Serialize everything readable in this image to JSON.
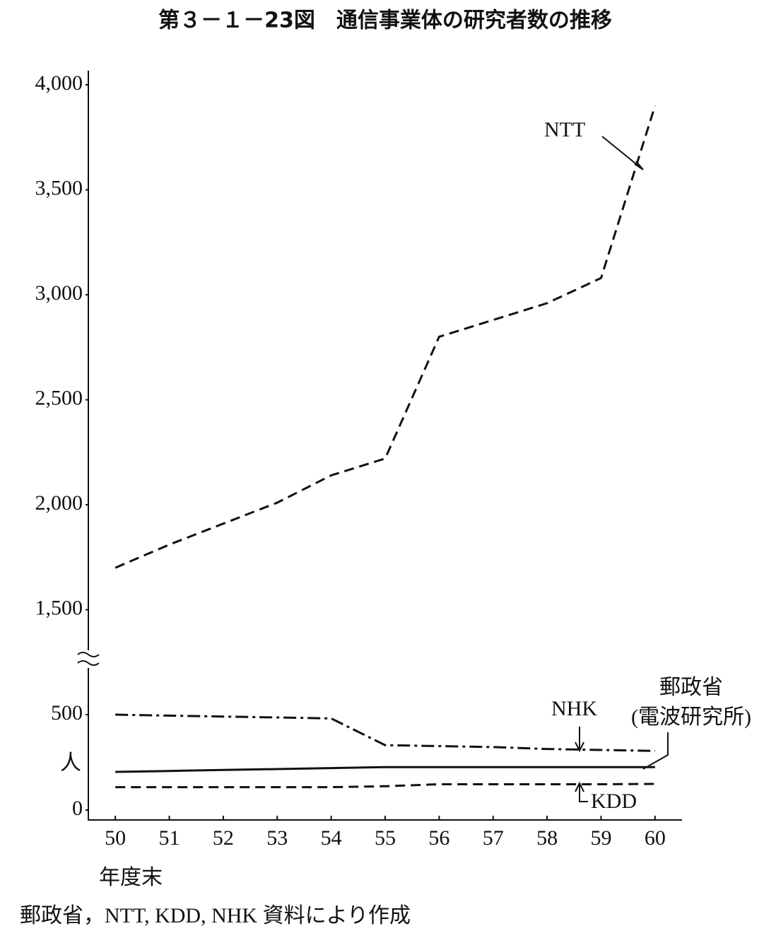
{
  "chart_data": {
    "type": "line",
    "title": "第３－１－23図　通信事業体の研究者数の推移",
    "y_unit": "人",
    "x_label": "年度末",
    "source": "郵政省，NTT, KDD, NHK 資料により作成",
    "categories": [
      "50",
      "51",
      "52",
      "53",
      "54",
      "55",
      "56",
      "57",
      "58",
      "59",
      "60"
    ],
    "ylim": [
      0,
      4000
    ],
    "axis_break": [
      700,
      1300
    ],
    "yticks": [
      0,
      500,
      {
        "value": 1500,
        "label": "1,500"
      },
      {
        "value": 2000,
        "label": "2,000"
      },
      {
        "value": 2500,
        "label": "2,500"
      },
      {
        "value": 3000,
        "label": "3,000"
      },
      {
        "value": 3500,
        "label": "3,500"
      },
      {
        "value": 4000,
        "label": "4,000"
      }
    ],
    "series": [
      {
        "name": "NTT",
        "color": "#111111",
        "style": "dashed",
        "values": [
          1700,
          1810,
          1910,
          2010,
          2140,
          2220,
          2800,
          2880,
          2960,
          3080,
          3900
        ]
      },
      {
        "name": "NHK",
        "color": "#111111",
        "style": "dashdot",
        "values": [
          500,
          495,
          490,
          485,
          480,
          340,
          335,
          330,
          320,
          315,
          310
        ]
      },
      {
        "name": "郵政省",
        "name_note": "(電波研究所)",
        "color": "#111111",
        "style": "solid",
        "values": [
          200,
          205,
          210,
          215,
          220,
          225,
          225,
          225,
          225,
          225,
          225
        ]
      },
      {
        "name": "KDD",
        "color": "#111111",
        "style": "dashed",
        "values": [
          120,
          120,
          120,
          120,
          120,
          125,
          135,
          135,
          135,
          135,
          137
        ]
      }
    ]
  }
}
